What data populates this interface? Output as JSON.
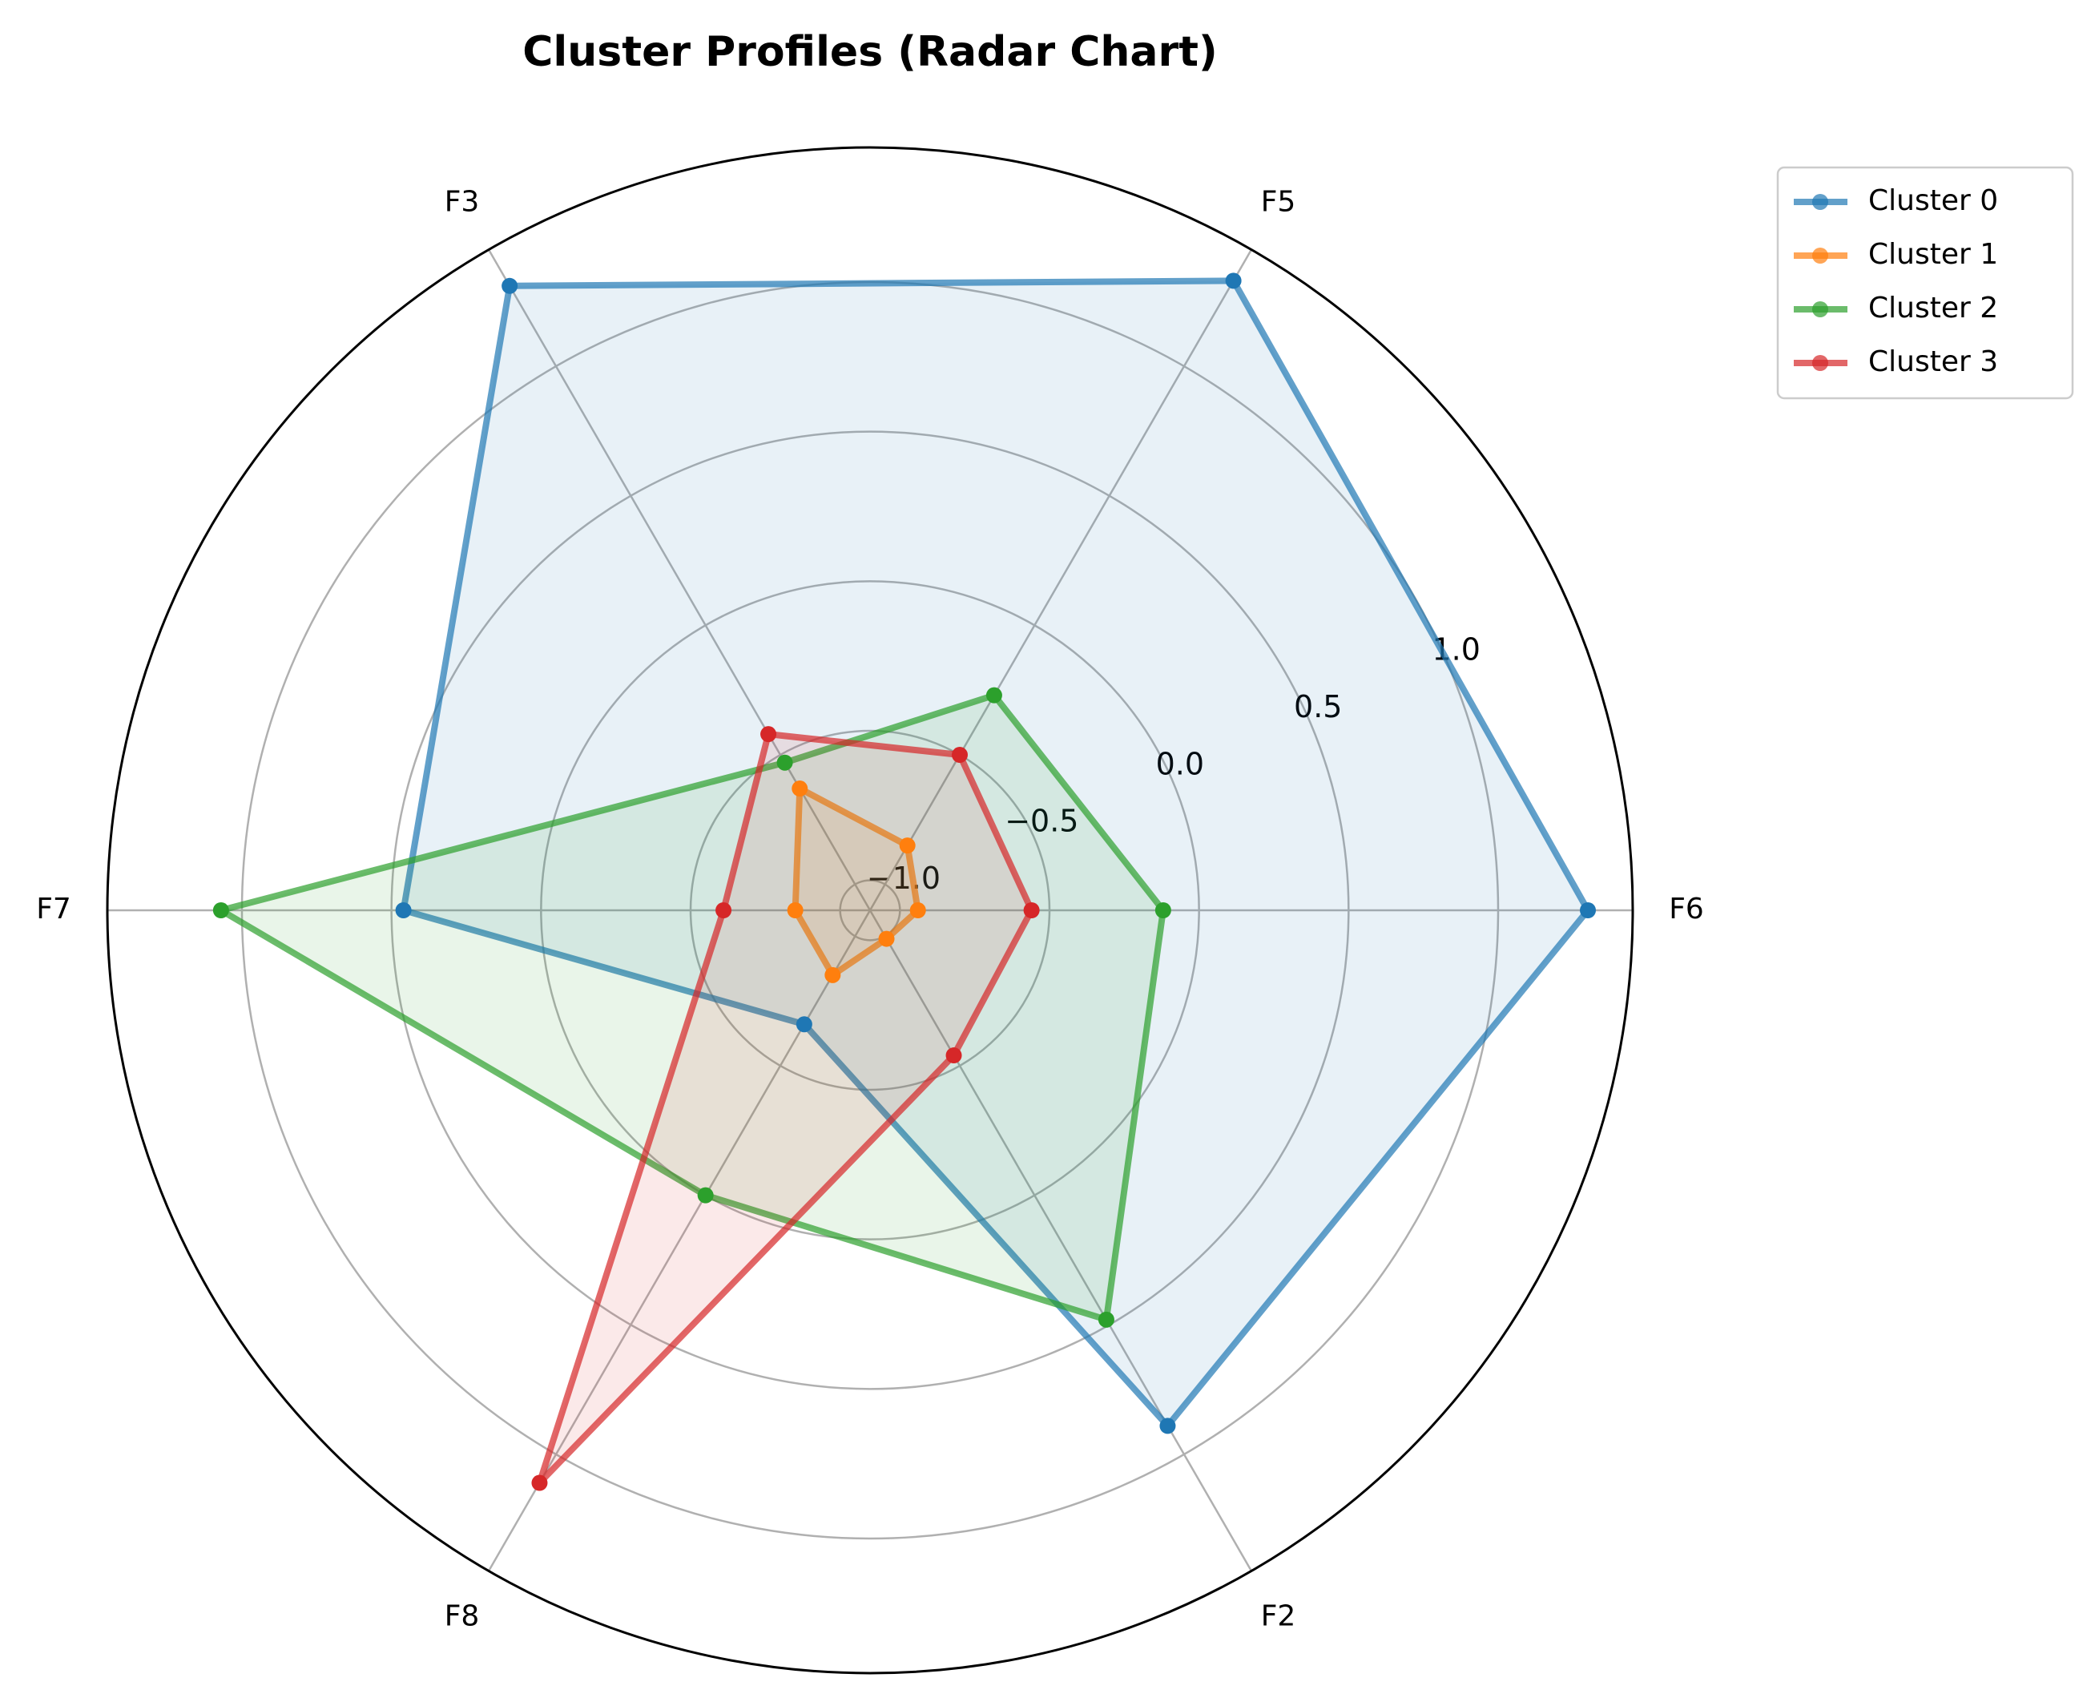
{
  "chart_data": {
    "type": "radar",
    "title": "Cluster Profiles (Radar Chart)",
    "categories": [
      "F6",
      "F5",
      "F3",
      "F7",
      "F8",
      "F2"
    ],
    "series": [
      {
        "name": "Cluster 0",
        "color": "#1f77b4",
        "values": [
          1.3,
          1.33,
          1.31,
          0.46,
          -0.66,
          0.89
        ]
      },
      {
        "name": "Cluster 1",
        "color": "#ff7f0e",
        "values": [
          -0.94,
          -0.85,
          -0.63,
          -0.85,
          -0.85,
          -0.99
        ]
      },
      {
        "name": "Cluster 2",
        "color": "#2ca02c",
        "values": [
          -0.12,
          -0.27,
          -0.53,
          1.07,
          0.0,
          0.48
        ]
      },
      {
        "name": "Cluster 3",
        "color": "#d62728",
        "values": [
          -0.56,
          -0.5,
          -0.42,
          -0.61,
          1.11,
          -0.54
        ]
      }
    ],
    "ylim": [
      -1.1,
      1.45
    ],
    "yticks": [
      {
        "value": -1.0,
        "label": "−1.0"
      },
      {
        "value": -0.5,
        "label": "−0.5"
      },
      {
        "value": 0.0,
        "label": "0.0"
      },
      0.5,
      {
        "value": 1.0,
        "label": "1.0"
      }
    ],
    "grid": true,
    "legend": "outside upper right"
  }
}
